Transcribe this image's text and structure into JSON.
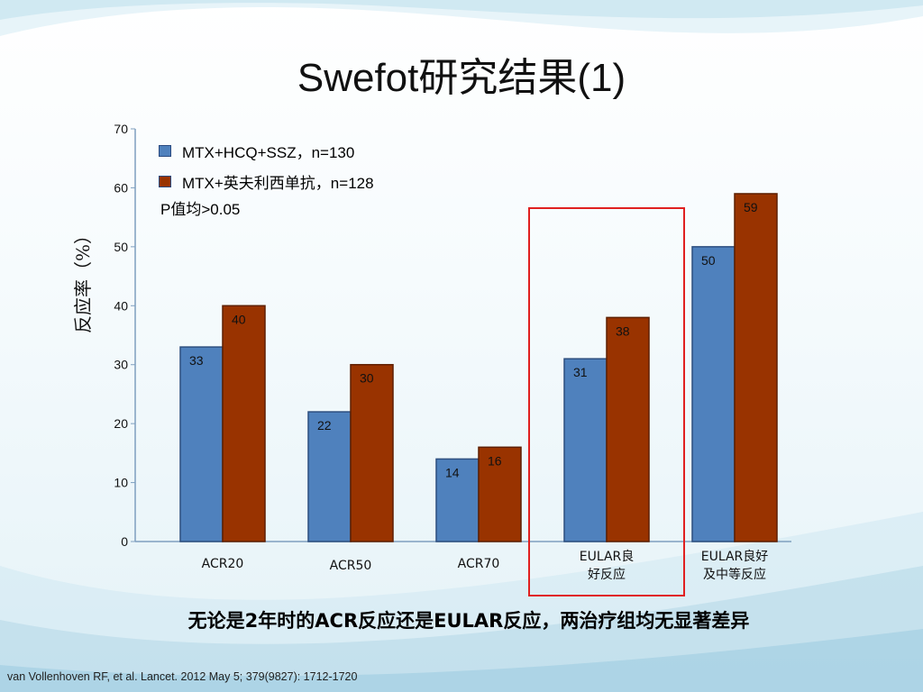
{
  "slide": {
    "title": "Swefot研究结果(1)",
    "conclusion": "无论是2年时的ACR反应还是EULAR反应，两治疗组均无显著差异",
    "citation": "van Vollenhoven RF, et al. Lancet. 2012 May 5; 379(9827): 1712-1720"
  },
  "legend": {
    "note": "P值均>0.05"
  },
  "colors": {
    "series1": "#4f81bd",
    "series2": "#993300",
    "highlight": "#e02020"
  },
  "chart_data": {
    "type": "bar",
    "title": "",
    "ylabel": "反应率（%）",
    "xlabel": "",
    "ylim": [
      0,
      70
    ],
    "yticks": [
      0,
      10,
      20,
      30,
      40,
      50,
      60,
      70
    ],
    "grid": false,
    "legend_position": "top-left",
    "categories": [
      "ACR20",
      "ACR50",
      "ACR70",
      "EULAR良好反应",
      "EULAR良好及中等反应"
    ],
    "category_labels": [
      [
        "ACR20"
      ],
      [
        "ACR50"
      ],
      [
        "ACR70"
      ],
      [
        "EULAR良",
        "好反应"
      ],
      [
        "EULAR良好",
        "及中等反应"
      ]
    ],
    "series": [
      {
        "name": "MTX+HCQ+SSZ，n=130",
        "values": [
          33,
          22,
          14,
          31,
          50
        ]
      },
      {
        "name": "MTX+英夫利西单抗，n=128",
        "values": [
          40,
          30,
          16,
          38,
          59
        ]
      }
    ],
    "highlighted_category": "EULAR良好反应"
  }
}
